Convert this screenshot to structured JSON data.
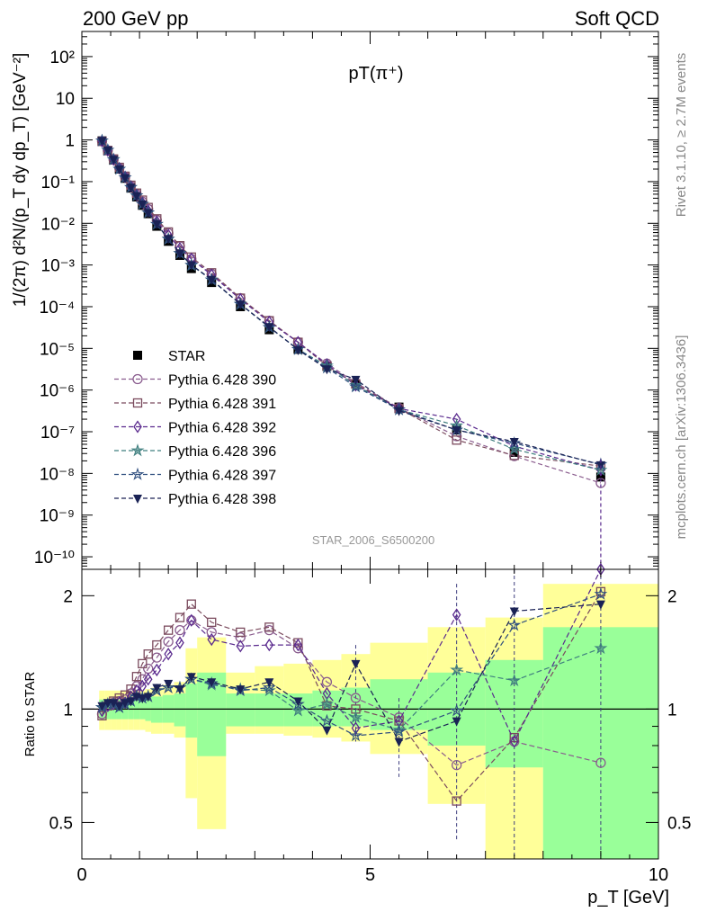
{
  "header": {
    "left": "200 GeV pp",
    "right": "Soft QCD"
  },
  "side": {
    "rivet": "Rivet 3.1.10, ≥ 2.7M events",
    "mcplots": "mcplots.cern.ch [arXiv:1306.3436]"
  },
  "chart_data": [
    {
      "type": "scatter",
      "title": "pT(π⁺)",
      "analysis_label": "STAR_2006_S6500200",
      "ylabel": "1/(2π) d²N/(p_T dy dp_T) [GeV⁻²]",
      "xlim": [
        0,
        10
      ],
      "ylim": [
        5e-11,
        400
      ],
      "y_scale": "log",
      "y_tick_labels": [
        "10⁻¹⁰",
        "10⁻⁹",
        "10⁻⁸",
        "10⁻⁷",
        "10⁻⁶",
        "10⁻⁵",
        "10⁻⁴",
        "10⁻³",
        "10⁻²",
        "10⁻¹",
        "1",
        "10",
        "10²"
      ],
      "legend_position": "middle-left",
      "x": [
        0.35,
        0.45,
        0.55,
        0.65,
        0.75,
        0.85,
        0.95,
        1.05,
        1.15,
        1.3,
        1.5,
        1.7,
        1.9,
        2.25,
        2.75,
        3.25,
        3.75,
        4.25,
        4.75,
        5.5,
        6.5,
        7.5,
        9.0
      ],
      "series": [
        {
          "name": "STAR",
          "marker": "filled-square",
          "color": "#000000",
          "dashed": false,
          "values": [
            0.95,
            0.55,
            0.33,
            0.2,
            0.12,
            0.07,
            0.043,
            0.027,
            0.017,
            0.0085,
            0.0037,
            0.0017,
            0.00082,
            0.00038,
            0.0001,
            2.8e-05,
            9.5e-06,
            3.7e-06,
            1.4e-06,
            3.9e-07,
            1.1e-07,
            3.2e-08,
            8.2e-09
          ]
        },
        {
          "name": "Pythia 6.428 390",
          "marker": "open-circle",
          "color": "#8a5c8e",
          "dashed": true,
          "values": [
            0.93,
            0.56,
            0.34,
            0.21,
            0.13,
            0.078,
            0.05,
            0.033,
            0.022,
            0.012,
            0.0058,
            0.0028,
            0.0014,
            0.00061,
            0.00016,
            4.6e-05,
            1.4e-05,
            4.3e-06,
            1.5e-06,
            3.7e-07,
            7.8e-08,
            2.6e-08,
            5.9e-09
          ]
        },
        {
          "name": "Pythia 6.428 391",
          "marker": "open-square",
          "color": "#7b4b5e",
          "dashed": true,
          "values": [
            0.92,
            0.56,
            0.35,
            0.22,
            0.135,
            0.082,
            0.053,
            0.036,
            0.024,
            0.0128,
            0.0062,
            0.0029,
            0.00155,
            0.00065,
            0.00016,
            4.6e-05,
            1.4e-05,
            3.8e-06,
            1.4e-06,
            3.6e-07,
            6.3e-08,
            2.7e-08,
            1.5e-08
          ]
        },
        {
          "name": "Pythia 6.428 392",
          "marker": "open-diamond",
          "color": "#5a2a8e",
          "dashed": true,
          "values": [
            0.94,
            0.56,
            0.34,
            0.21,
            0.13,
            0.077,
            0.048,
            0.031,
            0.02,
            0.011,
            0.0052,
            0.0025,
            0.0014,
            0.00058,
            0.00015,
            4.3e-05,
            1.4e-05,
            4.1e-06,
            1.3e-06,
            3.6e-07,
            2e-07,
            4.5e-08,
            1.2e-08
          ]
        },
        {
          "name": "Pythia 6.428 396",
          "marker": "star-open",
          "color": "#3f7f7f",
          "dashed": true,
          "values": [
            0.96,
            0.57,
            0.34,
            0.2,
            0.125,
            0.073,
            0.046,
            0.029,
            0.018,
            0.0095,
            0.0042,
            0.0019,
            0.00098,
            0.00044,
            0.000115,
            3.2e-05,
            9.5e-06,
            3.8e-06,
            1.3e-06,
            3.4e-07,
            1.4e-07,
            3.8e-08,
            1.2e-08
          ]
        },
        {
          "name": "Pythia 6.428 397",
          "marker": "star-open-dark",
          "color": "#2f4f7f",
          "dashed": true,
          "values": [
            0.96,
            0.57,
            0.34,
            0.2,
            0.125,
            0.073,
            0.046,
            0.029,
            0.018,
            0.0095,
            0.0042,
            0.0019,
            0.001,
            0.00044,
            0.000115,
            3.2e-05,
            9.5e-06,
            3.4e-06,
            1.2e-06,
            3.4e-07,
            1.1e-07,
            5.3e-08,
            1.65e-08
          ]
        },
        {
          "name": "Pythia 6.428 398",
          "marker": "filled-triangle-down",
          "color": "#1a2255",
          "dashed": true,
          "values": [
            0.97,
            0.57,
            0.34,
            0.2,
            0.124,
            0.073,
            0.046,
            0.029,
            0.018,
            0.0097,
            0.0043,
            0.0019,
            0.001,
            0.00045,
            0.000115,
            3.3e-05,
            9.2e-06,
            3.2e-06,
            1.8e-06,
            3.2e-07,
            1.1e-07,
            5.8e-08,
            1.6e-08
          ]
        }
      ]
    },
    {
      "type": "scatter",
      "ylabel": "Ratio to STAR",
      "xlabel": "p_T [GeV]",
      "xlim": [
        0,
        10
      ],
      "ylim": [
        0.4,
        2.35
      ],
      "y_scale": "log",
      "x_tick_labels": [
        "0",
        "5",
        "10"
      ],
      "y_tick_labels": [
        "0.5",
        "1",
        "2"
      ],
      "reference_line": 1,
      "band_colors": {
        "inner": "#99ff99",
        "outer": "#ffff99"
      },
      "bands": {
        "x_edges": [
          0.3,
          0.4,
          0.5,
          0.6,
          0.7,
          0.8,
          0.9,
          1.0,
          1.1,
          1.2,
          1.4,
          1.6,
          1.8,
          2.0,
          2.5,
          3.0,
          3.5,
          4.0,
          4.5,
          5.0,
          6.0,
          7.0,
          8.0,
          10.0
        ],
        "inner_low": [
          0.94,
          0.94,
          0.94,
          0.94,
          0.94,
          0.94,
          0.94,
          0.94,
          0.93,
          0.92,
          0.92,
          0.9,
          0.84,
          0.75,
          0.9,
          0.9,
          0.9,
          0.9,
          0.9,
          0.88,
          0.8,
          0.7,
          0.35
        ],
        "inner_high": [
          1.06,
          1.06,
          1.06,
          1.06,
          1.06,
          1.06,
          1.06,
          1.06,
          1.07,
          1.08,
          1.09,
          1.1,
          1.17,
          1.25,
          1.1,
          1.1,
          1.1,
          1.12,
          1.14,
          1.2,
          1.25,
          1.35,
          1.65
        ],
        "outer_low": [
          0.88,
          0.88,
          0.88,
          0.88,
          0.88,
          0.88,
          0.88,
          0.88,
          0.87,
          0.86,
          0.86,
          0.84,
          0.58,
          0.48,
          0.86,
          0.86,
          0.85,
          0.84,
          0.82,
          0.76,
          0.56,
          0.35,
          0.35
        ],
        "outer_high": [
          1.12,
          1.12,
          1.12,
          1.12,
          1.12,
          1.12,
          1.12,
          1.12,
          1.13,
          1.14,
          1.16,
          1.18,
          1.45,
          1.55,
          1.25,
          1.3,
          1.32,
          1.35,
          1.4,
          1.5,
          1.65,
          1.75,
          2.15
        ]
      },
      "x": [
        0.35,
        0.45,
        0.55,
        0.65,
        0.75,
        0.85,
        0.95,
        1.05,
        1.15,
        1.3,
        1.5,
        1.7,
        1.9,
        2.25,
        2.75,
        3.25,
        3.75,
        4.25,
        4.75,
        5.5,
        6.5,
        7.5,
        9.0
      ],
      "series": [
        {
          "name": "Pythia 6.428 390",
          "values": [
            0.97,
            1.02,
            1.04,
            1.05,
            1.06,
            1.1,
            1.15,
            1.2,
            1.28,
            1.37,
            1.51,
            1.62,
            1.72,
            1.6,
            1.55,
            1.62,
            1.45,
            1.18,
            1.07,
            0.95,
            0.71,
            0.82,
            0.72
          ]
        },
        {
          "name": "Pythia 6.428 391",
          "values": [
            0.96,
            1.02,
            1.05,
            1.07,
            1.09,
            1.13,
            1.22,
            1.32,
            1.4,
            1.48,
            1.62,
            1.75,
            1.9,
            1.7,
            1.6,
            1.65,
            1.5,
            1.02,
            1.0,
            0.93,
            0.57,
            0.84,
            2.05
          ]
        },
        {
          "name": "Pythia 6.428 392",
          "values": [
            0.99,
            1.02,
            1.03,
            1.04,
            1.04,
            1.08,
            1.12,
            1.15,
            1.2,
            1.27,
            1.4,
            1.5,
            1.72,
            1.53,
            1.47,
            1.48,
            1.48,
            1.1,
            0.89,
            0.93,
            1.78,
            0.82,
            2.35
          ]
        },
        {
          "name": "Pythia 6.428 396",
          "values": [
            1.01,
            1.03,
            1.03,
            1.01,
            1.03,
            1.05,
            1.08,
            1.07,
            1.08,
            1.12,
            1.14,
            1.14,
            1.2,
            1.16,
            1.13,
            1.12,
            0.99,
            1.03,
            0.95,
            0.88,
            1.27,
            1.19,
            1.45
          ]
        },
        {
          "name": "Pythia 6.428 397",
          "values": [
            1.01,
            1.03,
            1.03,
            1.01,
            1.03,
            1.05,
            1.08,
            1.07,
            1.08,
            1.12,
            1.14,
            1.14,
            1.2,
            1.17,
            1.12,
            1.14,
            1.03,
            0.93,
            0.85,
            0.87,
            0.99,
            1.67,
            2.02
          ]
        },
        {
          "name": "Pythia 6.428 398",
          "values": [
            1.02,
            1.04,
            1.04,
            1.02,
            1.04,
            1.05,
            1.08,
            1.07,
            1.08,
            1.14,
            1.17,
            1.13,
            1.22,
            1.18,
            1.13,
            1.18,
            1.05,
            0.88,
            1.32,
            0.82,
            0.93,
            1.82,
            1.9
          ]
        }
      ]
    }
  ]
}
